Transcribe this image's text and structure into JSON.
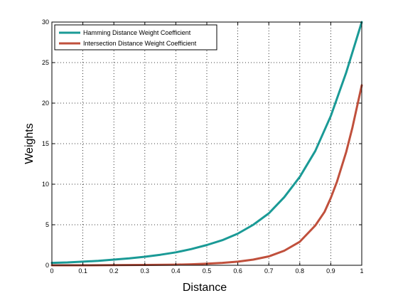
{
  "chart_data": {
    "type": "line",
    "xlabel": "Distance",
    "ylabel": "Weights",
    "xlim": [
      0,
      1
    ],
    "ylim": [
      0,
      30
    ],
    "x_ticks": [
      0,
      0.1,
      0.2,
      0.3,
      0.4,
      0.5,
      0.6,
      0.7,
      0.8,
      0.9,
      1
    ],
    "x_tick_labels": [
      "0",
      "0.1",
      "0.2",
      "0.3",
      "0.4",
      "0.5",
      "0.6",
      "0.7",
      "0.8",
      "0.9",
      "1"
    ],
    "y_ticks": [
      0,
      5,
      10,
      15,
      20,
      25,
      30
    ],
    "y_tick_labels": [
      "0",
      "5",
      "10",
      "15",
      "20",
      "25",
      "30"
    ],
    "grid": true,
    "legend_position": "top-left",
    "series": [
      {
        "name": "Hamming Distance Weight Coefficient",
        "color": "#1a9a96",
        "x": [
          0,
          0.05,
          0.1,
          0.15,
          0.2,
          0.25,
          0.3,
          0.35,
          0.4,
          0.45,
          0.5,
          0.55,
          0.6,
          0.65,
          0.7,
          0.75,
          0.8,
          0.85,
          0.9,
          0.95,
          1
        ],
        "y": [
          0.3,
          0.35,
          0.45,
          0.55,
          0.7,
          0.85,
          1.05,
          1.3,
          1.6,
          2.0,
          2.5,
          3.1,
          3.9,
          5.0,
          6.4,
          8.4,
          10.9,
          14.1,
          18.4,
          23.8,
          30
        ]
      },
      {
        "name": "Intersection Distance Weight Coefficient",
        "color": "#c0503c",
        "x": [
          0,
          0.1,
          0.2,
          0.3,
          0.4,
          0.45,
          0.5,
          0.55,
          0.6,
          0.65,
          0.7,
          0.75,
          0.8,
          0.85,
          0.88,
          0.9,
          0.92,
          0.95,
          0.97,
          1
        ],
        "y": [
          0,
          0,
          0.02,
          0.04,
          0.08,
          0.12,
          0.2,
          0.3,
          0.45,
          0.7,
          1.1,
          1.8,
          2.9,
          4.9,
          6.6,
          8.3,
          10.3,
          14.0,
          17.0,
          22.2
        ]
      }
    ]
  }
}
